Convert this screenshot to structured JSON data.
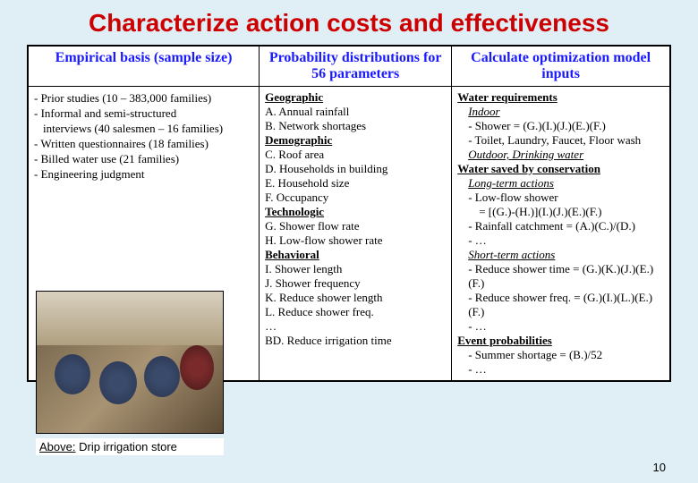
{
  "title": "Characterize action costs and effectiveness",
  "title_fontsize": 28,
  "slide_number": "10",
  "caption_prefix": "Above:",
  "caption_text": " Drip irrigation store",
  "colors": {
    "background": "#e0eef6",
    "title": "#cc0000",
    "header_text": "#1a1aff",
    "body_text": "#000000",
    "cell_bg": "#ffffff",
    "border": "#000000"
  },
  "table": {
    "col_widths_pct": [
      36,
      30,
      34
    ],
    "header_fontsize": 16,
    "body_fontsize": 13,
    "headers": [
      "Empirical basis (sample size)",
      "Probability distributions for 56 parameters",
      "Calculate optimization model inputs"
    ],
    "col1": [
      "- Prior studies (10 – 383,000 families)",
      "- Informal and semi-structured",
      "  interviews (40 salesmen – 16 families)",
      "- Written questionnaires (18 families)",
      "- Billed water use (21 families)",
      "- Engineering judgment"
    ],
    "col2": {
      "geographic": {
        "label": "Geographic",
        "items": [
          "A. Annual rainfall",
          "B. Network shortages"
        ]
      },
      "demographic": {
        "label": "Demographic",
        "items": [
          "C. Roof area",
          "D. Households in building",
          "E. Household size",
          "F. Occupancy"
        ]
      },
      "technologic": {
        "label": "Technologic",
        "items": [
          "G. Shower flow rate",
          "H. Low-flow shower rate"
        ]
      },
      "behavioral": {
        "label": "Behavioral",
        "items": [
          "I. Shower length",
          "J. Shower frequency",
          "K. Reduce shower length",
          "L. Reduce shower freq.",
          "…",
          "BD. Reduce irrigation time"
        ]
      }
    },
    "col3": {
      "water_req": {
        "label": "Water requirements",
        "indoor_label": "Indoor",
        "indoor_items": [
          "- Shower = (G.)(I.)(J.)(E.)(F.)",
          "- Toilet, Laundry, Faucet, Floor wash"
        ],
        "outdoor_label": "Outdoor, Drinking water"
      },
      "water_saved": {
        "label": "Water saved by conservation",
        "long_label": "Long-term actions",
        "long_items": [
          "- Low-flow shower",
          "  = [(G.)-(H.)](I.)(J.)(E.)(F.)",
          "- Rainfall catchment = (A.)(C.)/(D.)",
          "- …"
        ],
        "short_label": "Short-term actions",
        "short_items": [
          "- Reduce shower time = (G.)(K.)(J.)(E.)(F.)",
          "- Reduce shower freq. = (G.)(I.)(L.)(E.)(F.)",
          "- …"
        ]
      },
      "event_prob": {
        "label": "Event probabilities",
        "items": [
          "- Summer shortage = (B.)/52",
          "- …"
        ]
      }
    }
  }
}
